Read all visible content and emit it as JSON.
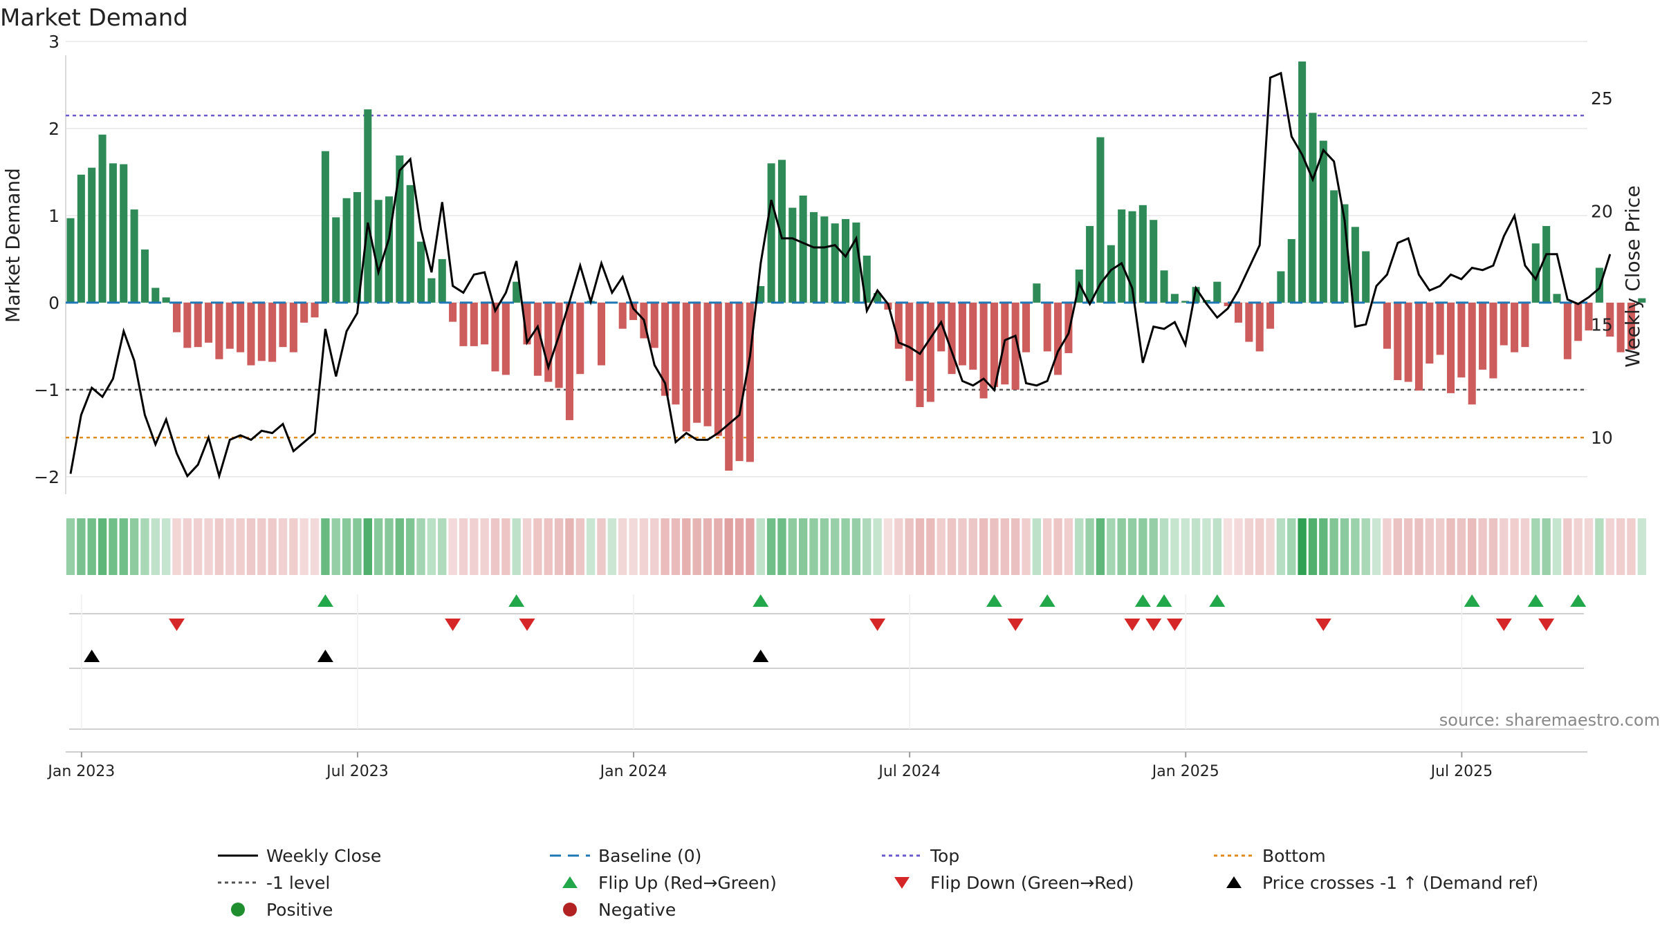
{
  "chart_data": {
    "type": "bar+line",
    "title": "Market Demand",
    "ylabel_left": "Market Demand",
    "ylabel_right": "Weekly Close Price",
    "ylim_left": [
      -2.2,
      3.0
    ],
    "ylim_right": [
      7.5,
      27.5
    ],
    "yticks_left": [
      3,
      2,
      1,
      0,
      -1,
      -2
    ],
    "yticks_left_labels": [
      "3",
      "2",
      "1",
      "0",
      "−1",
      "−2"
    ],
    "yticks_right": [
      25,
      20,
      15,
      10
    ],
    "yticks_right_labels": [
      "25",
      "20",
      "15",
      "10"
    ],
    "x_tick_labels": [
      "Jan 2023",
      "Jul 2023",
      "Jan 2024",
      "Jul 2024",
      "Jan 2025",
      "Jul 2025"
    ],
    "x_tick_weeks": [
      1,
      27,
      53,
      79,
      105,
      131
    ],
    "reference_lines": {
      "top": 2.15,
      "minus_one": -1.0,
      "bottom": -1.55,
      "baseline": 0
    },
    "demand": [
      0.97,
      1.47,
      1.55,
      1.93,
      1.6,
      1.59,
      1.07,
      0.61,
      0.17,
      0.06,
      -0.34,
      -0.52,
      -0.51,
      -0.46,
      -0.65,
      -0.53,
      -0.57,
      -0.72,
      -0.67,
      -0.68,
      -0.51,
      -0.57,
      -0.23,
      -0.17,
      1.74,
      0.98,
      1.2,
      1.27,
      2.22,
      1.18,
      1.22,
      1.69,
      1.35,
      0.7,
      0.28,
      0.5,
      -0.22,
      -0.5,
      -0.5,
      -0.48,
      -0.79,
      -0.83,
      0.24,
      -0.48,
      -0.84,
      -0.91,
      -0.98,
      -1.35,
      -0.82,
      0.02,
      -0.72,
      0.01,
      -0.3,
      -0.2,
      -0.41,
      -0.52,
      -1.07,
      -1.17,
      -1.48,
      -1.38,
      -1.42,
      -1.53,
      -1.93,
      -1.82,
      -1.83,
      0.19,
      1.6,
      1.64,
      1.09,
      1.23,
      1.04,
      0.99,
      0.91,
      0.96,
      0.92,
      0.54,
      0.11,
      -0.08,
      -0.53,
      -0.9,
      -1.2,
      -1.14,
      -0.56,
      -0.82,
      -0.72,
      -0.77,
      -1.1,
      -0.97,
      -0.94,
      -1.0,
      -0.57,
      0.22,
      -0.56,
      -0.83,
      -0.58,
      0.38,
      0.88,
      1.9,
      0.66,
      1.07,
      1.05,
      1.12,
      0.95,
      0.37,
      0.1,
      0.02,
      0.18,
      0.03,
      0.24,
      -0.04,
      -0.23,
      -0.45,
      -0.56,
      -0.3,
      0.36,
      0.73,
      2.77,
      2.18,
      1.86,
      1.29,
      1.13,
      0.87,
      0.59,
      0.01,
      -0.53,
      -0.89,
      -0.91,
      -1.01,
      -0.7,
      -0.6,
      -1.04,
      -0.86,
      -1.17,
      -0.77,
      -0.87,
      -0.49,
      -0.57,
      -0.51,
      0.68,
      0.88,
      0.1,
      -0.65,
      -0.44,
      -0.32,
      0.4,
      -0.39,
      -0.57,
      -0.54,
      0.05
    ],
    "weekly_close": [
      8.4,
      11.0,
      12.2,
      11.8,
      12.6,
      14.7,
      13.4,
      11.0,
      9.7,
      10.8,
      9.3,
      8.3,
      8.8,
      10.0,
      8.3,
      9.9,
      10.1,
      9.9,
      10.3,
      10.2,
      10.6,
      9.4,
      9.8,
      10.2,
      14.8,
      12.7,
      14.7,
      15.5,
      19.5,
      17.3,
      18.8,
      21.8,
      22.3,
      19.2,
      17.3,
      20.4,
      16.7,
      16.4,
      17.2,
      17.3,
      15.6,
      16.4,
      17.8,
      14.2,
      14.9,
      13.1,
      14.5,
      16.0,
      17.6,
      16.0,
      17.7,
      16.4,
      17.1,
      15.7,
      15.2,
      13.2,
      12.4,
      9.8,
      10.2,
      9.9,
      9.9,
      10.2,
      10.6,
      11.0,
      13.6,
      17.7,
      20.5,
      18.8,
      18.8,
      18.6,
      18.4,
      18.4,
      18.5,
      18.0,
      18.8,
      15.6,
      16.5,
      15.9,
      14.2,
      14.0,
      13.7,
      14.4,
      15.1,
      13.8,
      12.5,
      12.3,
      12.6,
      12.1,
      14.3,
      14.5,
      12.4,
      12.3,
      12.5,
      13.8,
      14.6,
      16.8,
      15.9,
      16.8,
      17.4,
      17.7,
      16.6,
      13.3,
      14.9,
      14.8,
      15.1,
      14.1,
      16.6,
      15.9,
      15.3,
      15.7,
      16.5,
      17.5,
      18.5,
      25.9,
      26.1,
      23.3,
      22.5,
      21.4,
      22.7,
      22.2,
      19.6,
      14.9,
      15.0,
      16.7,
      17.2,
      18.6,
      18.8,
      17.2,
      16.5,
      16.7,
      17.2,
      17.0,
      17.5,
      17.4,
      17.6,
      18.9,
      19.8,
      17.6,
      17.0,
      18.1,
      18.1,
      16.1,
      15.9,
      16.2,
      16.6,
      18.1
    ],
    "band_colors_note": "heatmap strip uses demand sign (green/red) and magnitude (intensity)",
    "flip_up_weeks": [
      24,
      42,
      65,
      87,
      92,
      101,
      103,
      108,
      132,
      138,
      142
    ],
    "flip_down_weeks": [
      10,
      36,
      43,
      76,
      89,
      100,
      102,
      104,
      118,
      135,
      139
    ],
    "price_cross_weeks": [
      2,
      24,
      65
    ],
    "legend": [
      {
        "label": "Weekly Close",
        "symbol": "line-solid",
        "color": "#000000"
      },
      {
        "label": "Baseline (0)",
        "symbol": "line-dashed",
        "color": "#1f77b4"
      },
      {
        "label": "Top",
        "symbol": "line-dotted",
        "color": "#6a5acd"
      },
      {
        "label": "Bottom",
        "symbol": "line-dotted",
        "color": "#e08a1e"
      },
      {
        "label": "-1 level",
        "symbol": "line-dotted",
        "color": "#555555"
      },
      {
        "label": "Flip Up (Red→Green)",
        "symbol": "triangle-up",
        "color": "#22a84a"
      },
      {
        "label": "Flip Down (Green→Red)",
        "symbol": "triangle-down",
        "color": "#d62728"
      },
      {
        "label": "Price crosses -1 ↑ (Demand ref)",
        "symbol": "triangle-up",
        "color": "#000000"
      },
      {
        "label": "Positive",
        "symbol": "circle",
        "color": "#1e8e2e"
      },
      {
        "label": "Negative",
        "symbol": "circle",
        "color": "#b22222"
      }
    ],
    "source_note": "source: sharemaestro.com"
  },
  "colors": {
    "positive_bar": "#2e8b57",
    "negative_bar": "#cd5c5c",
    "baseline": "#1f77b4",
    "top": "#6a5acd",
    "bottom": "#e08a1e",
    "minus_one": "#555555",
    "close_line": "#000000",
    "flip_up": "#22a84a",
    "flip_down": "#d62728",
    "price_cross": "#000000"
  }
}
